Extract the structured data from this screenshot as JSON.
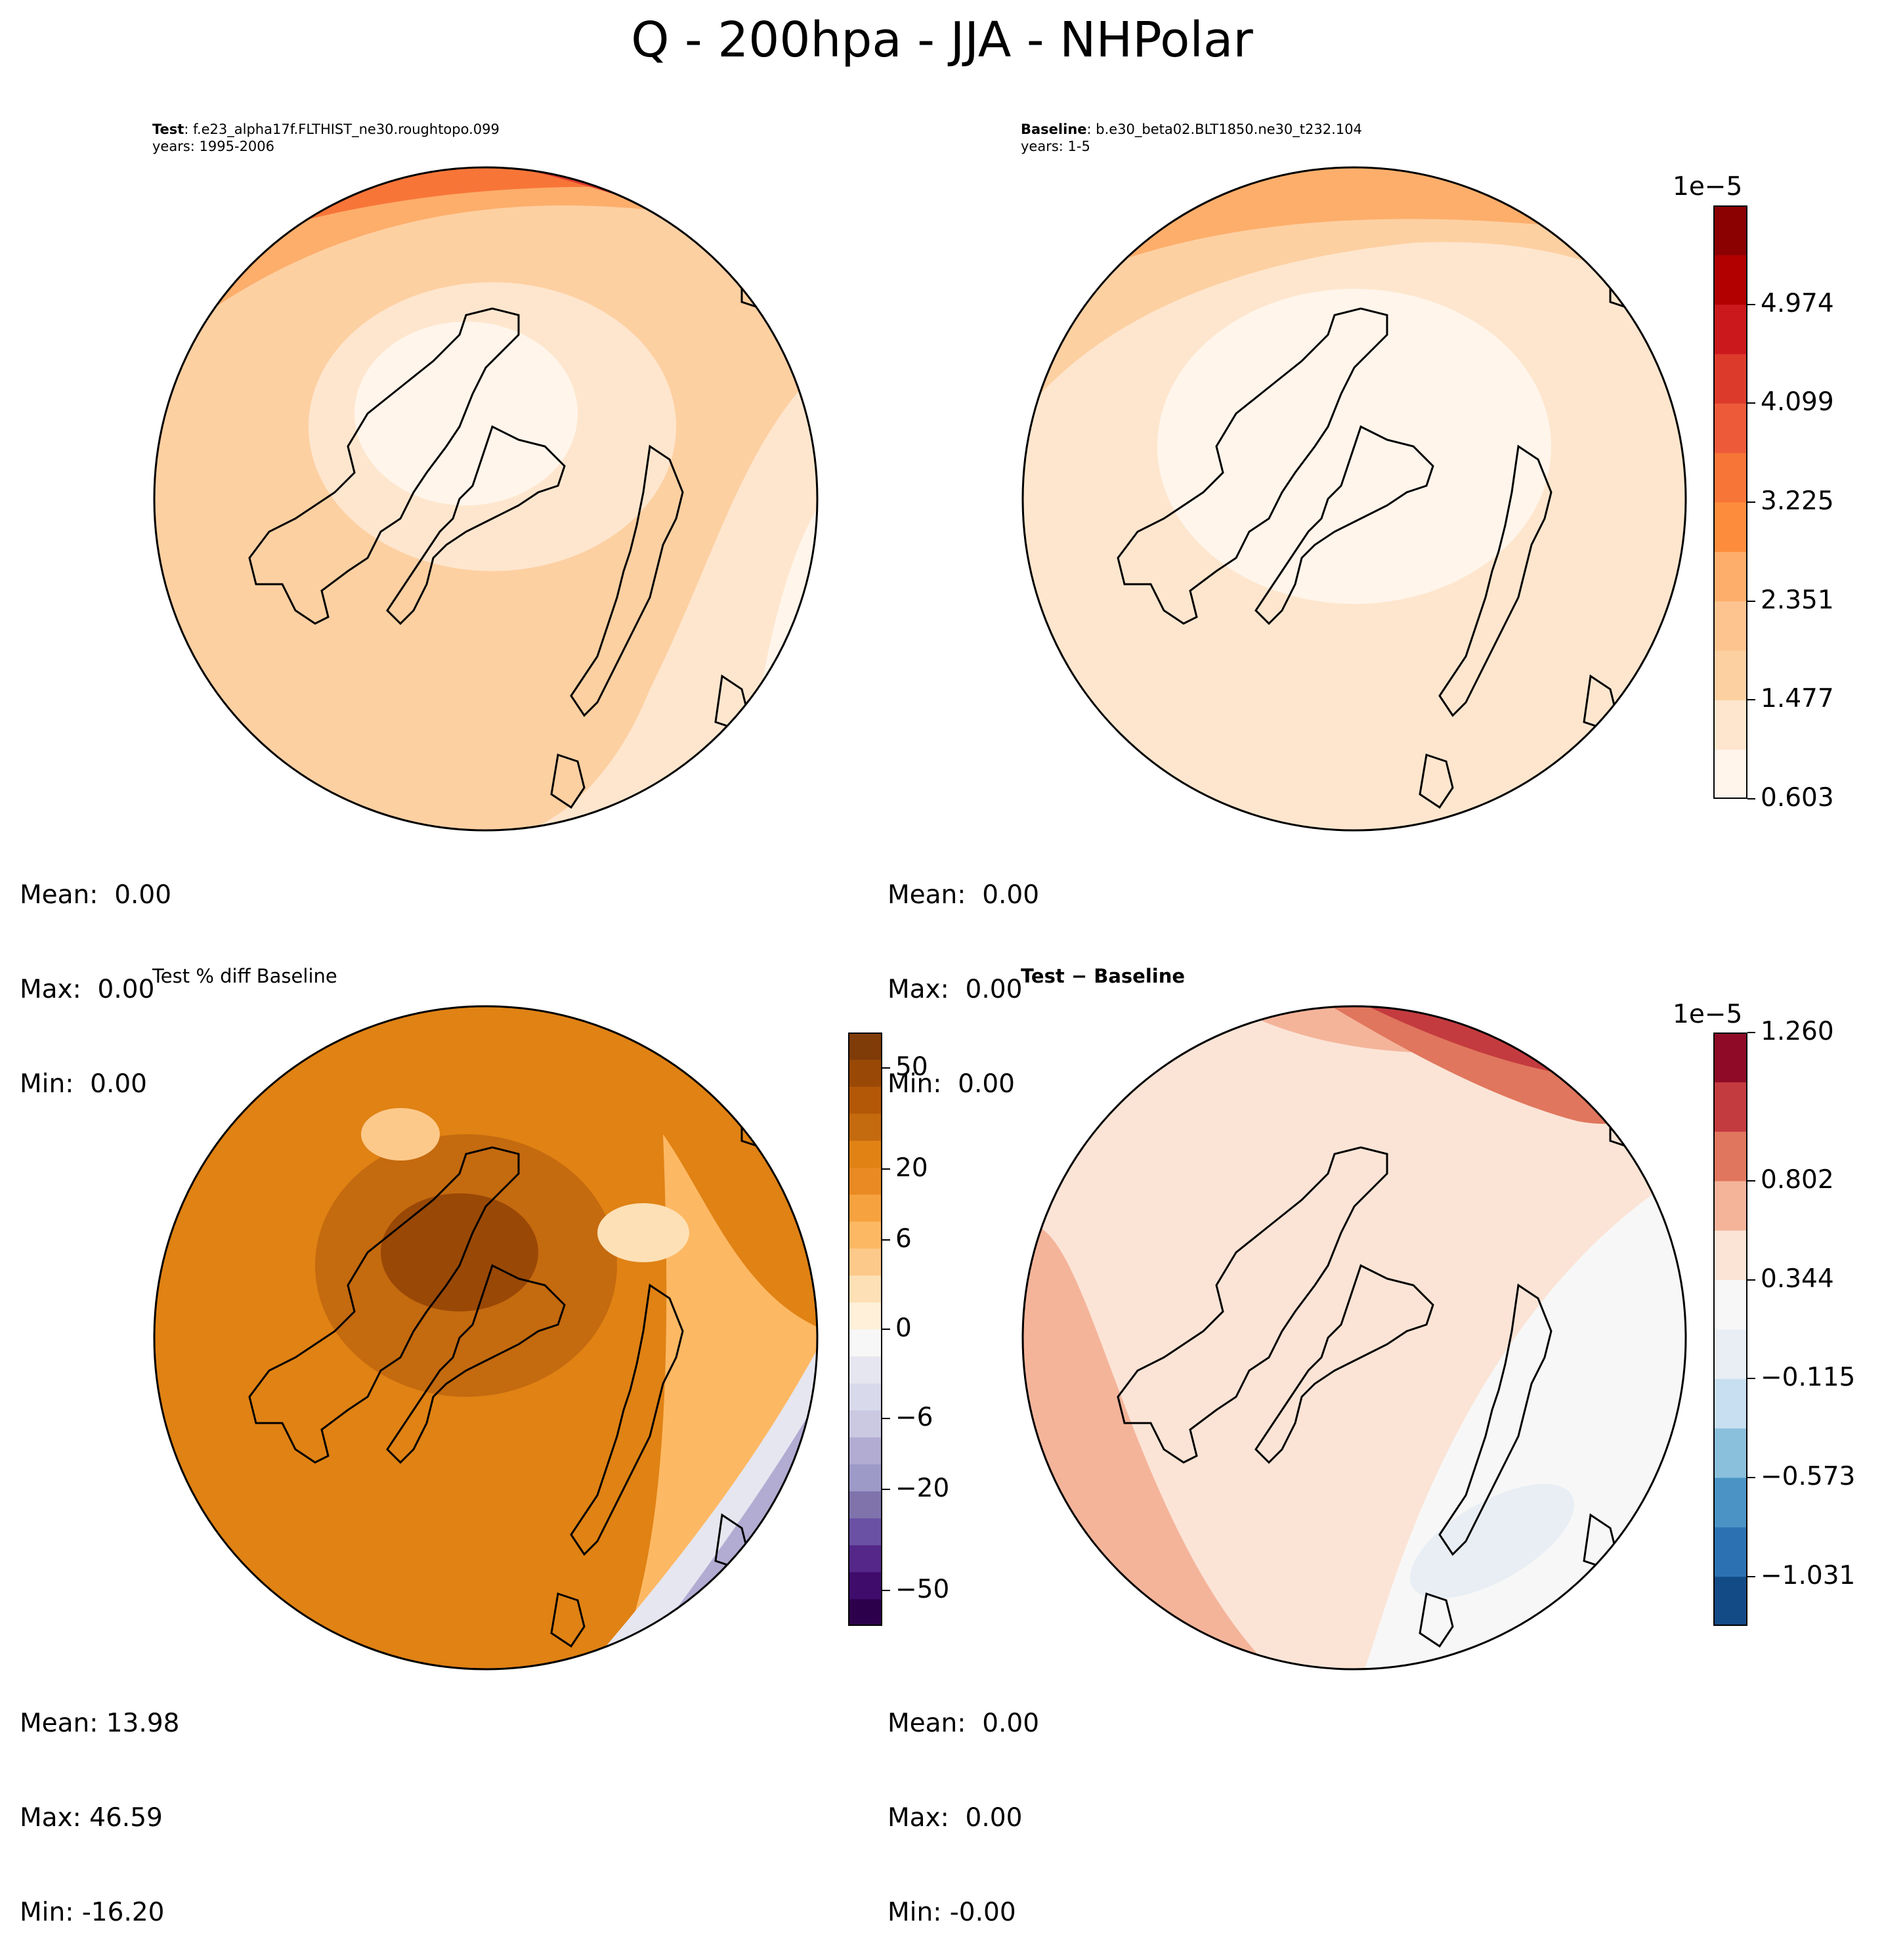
{
  "figure_title": "Q - 200hpa - JJA - NHPolar",
  "panels": {
    "test": {
      "label_bold": "Test",
      "label_rest": ": f.e23_alpha17f.FLTHIST_ne30.roughtopo.099",
      "years": "years: 1995-2006",
      "mean": "Mean:  0.00",
      "max": "Max:  0.00",
      "min": "Min:  0.00"
    },
    "baseline": {
      "label_bold": "Baseline",
      "label_rest": ": b.e30_beta02.BLT1850.ne30_t232.104",
      "years": "years: 1-5",
      "mean": "Mean:  0.00",
      "max": "Max:  0.00",
      "min": "Min:  0.00"
    },
    "pctdiff": {
      "label": "Test % diff Baseline",
      "mean": "Mean: 13.98",
      "max": "Max: 46.59",
      "min": "Min: -16.20"
    },
    "diff": {
      "label": "Test − Baseline",
      "mean": "Mean:  0.00",
      "max": "Max:  0.00",
      "min": "Min: -0.00"
    }
  },
  "colorbars": {
    "main": {
      "exponent": "1e−5",
      "ticks": [
        "0.603",
        "1.477",
        "2.351",
        "3.225",
        "4.099",
        "4.974"
      ],
      "colors": [
        "#fff5eb",
        "#fee6ce",
        "#fdd0a2",
        "#fdc48f",
        "#fdae6b",
        "#fd8d3c",
        "#f87538",
        "#ec5a3a",
        "#dc3b2c",
        "#cb181d",
        "#b20000",
        "#8b0000"
      ]
    },
    "pct": {
      "ticks": [
        "−50",
        "−20",
        "−6",
        "0",
        "6",
        "20",
        "50"
      ],
      "colors": [
        "#2d004b",
        "#3f0c6b",
        "#542788",
        "#6a51a3",
        "#8073ac",
        "#9e9ac8",
        "#b2abd2",
        "#cbc9e2",
        "#d8daeb",
        "#e6e6f0",
        "#f7f7f7",
        "#fef0d9",
        "#fee0b6",
        "#fdc98a",
        "#fdb863",
        "#f6a23f",
        "#e98a23",
        "#e08214",
        "#c46a0f",
        "#b35806",
        "#9a4806",
        "#7f3b08"
      ]
    },
    "diff": {
      "exponent": "1e−5",
      "ticks": [
        "−1.031",
        "−0.573",
        "−0.115",
        "0.344",
        "0.802",
        "1.260"
      ],
      "colors": [
        "#134b87",
        "#2c72b3",
        "#4a93c4",
        "#8ac0dc",
        "#c7dff0",
        "#e8eef4",
        "#f7f7f7",
        "#fbe4d6",
        "#f4b49a",
        "#e0765d",
        "#c43b3f",
        "#8f0a26"
      ]
    }
  }
}
